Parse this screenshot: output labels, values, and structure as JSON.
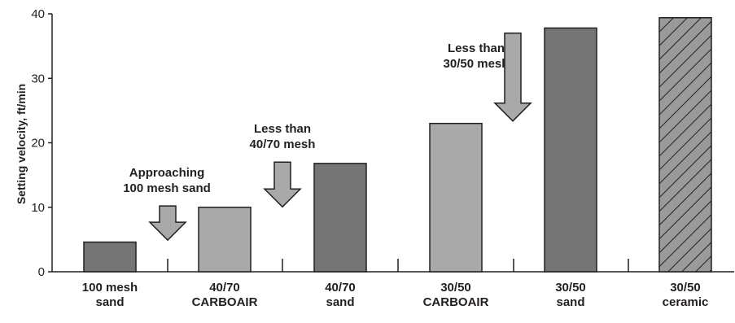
{
  "chart_data": {
    "type": "bar",
    "ylabel": "Setting velocity, ft/min",
    "ylim": [
      0,
      40
    ],
    "yticks": [
      "0",
      "10",
      "20",
      "30",
      "40"
    ],
    "categories": [
      [
        "100 mesh",
        "sand"
      ],
      [
        "40/70",
        "CARBOAIR"
      ],
      [
        "40/70",
        "sand"
      ],
      [
        "30/50",
        "CARBOAIR"
      ],
      [
        "30/50",
        "sand"
      ],
      [
        "30/50",
        "ceramic"
      ]
    ],
    "values": [
      4.6,
      10,
      16.8,
      23,
      37.8,
      39.4
    ],
    "bar_styles": [
      "dark",
      "light",
      "dark",
      "light",
      "dark",
      "hatched"
    ],
    "colors": {
      "dark": "#757575",
      "light": "#a9a9a9",
      "hatched": "#9a9a9a",
      "axis": "#231f20"
    },
    "annotations": [
      {
        "lines": [
          "Approaching",
          "100 mesh sand"
        ],
        "arrow": "down-arrow",
        "arrow_top": 10.2,
        "arrow_bottom": 0
      },
      {
        "lines": [
          "Less than",
          "40/70 mesh"
        ],
        "arrow": "down-arrow",
        "arrow_top": 17,
        "arrow_bottom": 0
      },
      {
        "lines": [
          "Less than",
          "30/50 mesh"
        ],
        "arrow": "down-arrow",
        "arrow_top": 37,
        "arrow_bottom": 0
      }
    ],
    "grid": false,
    "legend": "none"
  }
}
